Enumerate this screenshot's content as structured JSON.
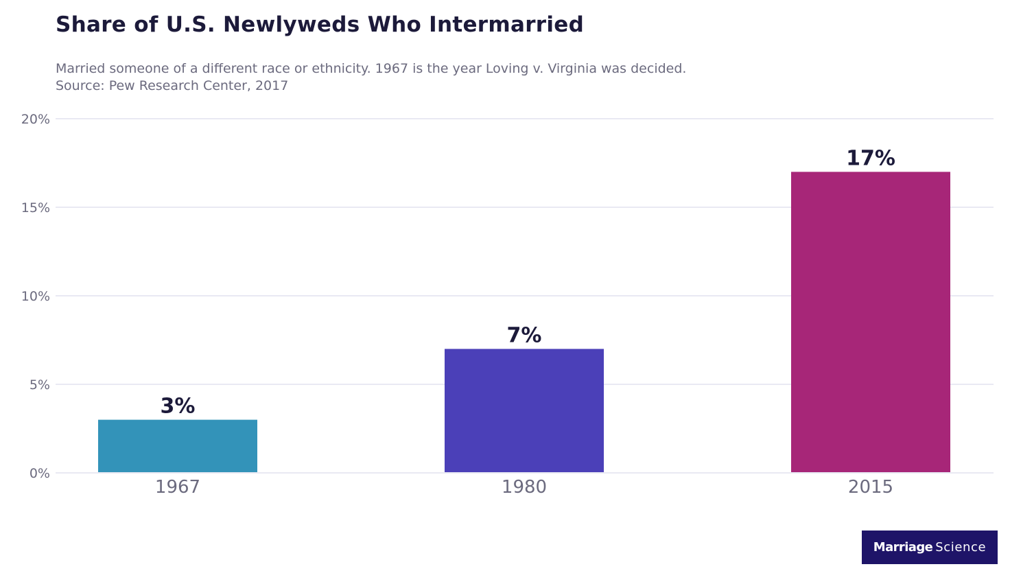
{
  "title": "Share of U.S. Newlyweds Who Intermarried",
  "subtitle_lines": [
    "Married someone of a different race or ethnicity. 1967 is the year Loving v. Virginia was decided.",
    "Source: Pew Research Center, 2017"
  ],
  "logo": {
    "bold": "Marriage",
    "regular": "Science"
  },
  "chart_data": {
    "type": "bar",
    "categories": [
      "1967",
      "1980",
      "2015"
    ],
    "values": [
      3,
      7,
      17
    ],
    "data_labels": [
      "3%",
      "7%",
      "17%"
    ],
    "colors": [
      "#3393b9",
      "#4b40b8",
      "#a72678"
    ],
    "ylim": [
      0,
      20
    ],
    "yticks": [
      0,
      5,
      10,
      15,
      20
    ],
    "ytick_labels": [
      "0%",
      "5%",
      "10%",
      "15%",
      "20%"
    ],
    "grid": true,
    "grid_color": "#dcdcec",
    "xlabel": "",
    "ylabel": ""
  }
}
